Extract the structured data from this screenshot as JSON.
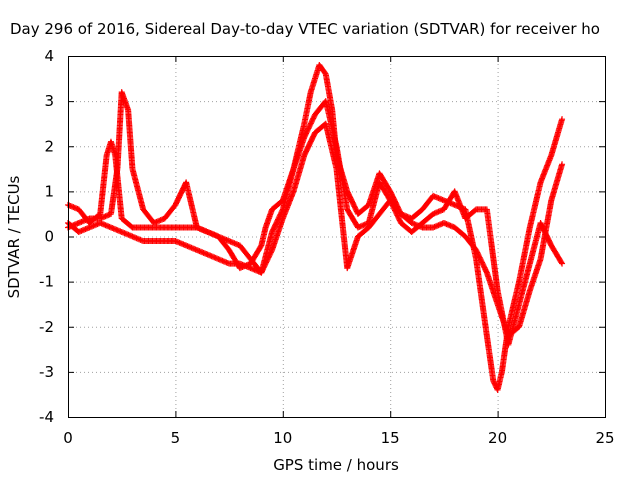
{
  "chart_data": {
    "type": "scatter",
    "title": "Day 296 of 2016, Sidereal Day-to-day VTEC variation (SDTVAR) for receiver ho",
    "xlabel": "GPS time / hours",
    "ylabel": "SDTVAR / TECUs",
    "xlim": [
      0,
      25
    ],
    "ylim": [
      -4,
      4
    ],
    "xticks": [
      "0",
      "5",
      "10",
      "15",
      "20",
      "25"
    ],
    "yticks": [
      "4",
      "3",
      "2",
      "1",
      "0",
      "-1",
      "-2",
      "-3",
      "-4"
    ],
    "grid": true,
    "marker": "+",
    "color": "#ff0000",
    "series": [
      {
        "x": [
          0.0,
          0.5,
          1.0,
          1.5,
          1.8,
          2.0,
          2.2,
          2.5,
          3.0,
          3.5,
          4.0,
          4.5,
          5.0,
          5.5,
          6.0,
          6.5,
          7.0,
          7.5,
          8.0,
          8.5,
          9.0,
          9.2,
          9.5,
          10.0,
          10.5,
          11.0,
          11.3,
          11.5,
          11.7,
          12.0,
          12.3,
          12.5,
          13.0,
          13.5,
          14.0,
          14.5,
          15.0,
          15.5,
          16.0,
          16.5,
          17.0,
          17.5,
          18.0,
          18.5,
          19.0,
          19.5,
          19.8,
          20.0,
          20.2,
          20.5,
          21.0,
          21.5,
          22.0,
          22.5,
          23.0
        ],
        "y": [
          0.7,
          0.6,
          0.3,
          0.5,
          1.8,
          2.1,
          1.8,
          0.4,
          0.2,
          0.2,
          0.2,
          0.2,
          0.2,
          0.2,
          0.2,
          0.1,
          0.0,
          -0.3,
          -0.7,
          -0.6,
          -0.2,
          0.2,
          0.6,
          0.8,
          1.5,
          2.5,
          3.2,
          3.5,
          3.8,
          3.6,
          2.8,
          1.8,
          1.0,
          0.5,
          0.7,
          1.4,
          1.0,
          0.5,
          0.4,
          0.6,
          0.9,
          0.8,
          0.7,
          0.6,
          -0.5,
          -2.2,
          -3.2,
          -3.4,
          -3.0,
          -2.0,
          -1.0,
          0.2,
          1.2,
          1.8,
          2.6
        ]
      },
      {
        "x": [
          0.0,
          0.5,
          1.0,
          1.5,
          2.0,
          2.3,
          2.5,
          2.8,
          3.0,
          3.5,
          4.0,
          4.5,
          5.0,
          5.5,
          6.0,
          6.5,
          7.0,
          7.5,
          8.0,
          8.5,
          9.0,
          9.5,
          10.0,
          10.5,
          11.0,
          11.5,
          12.0,
          12.5,
          13.0,
          13.5,
          14.0,
          14.5,
          15.0,
          15.5,
          16.0,
          16.5,
          17.0,
          17.5,
          18.0,
          18.5,
          19.0,
          19.5,
          20.0,
          20.5,
          21.0,
          21.5,
          22.0,
          22.5,
          23.0
        ],
        "y": [
          0.2,
          0.3,
          0.4,
          0.4,
          0.5,
          1.5,
          3.2,
          2.8,
          1.5,
          0.6,
          0.3,
          0.4,
          0.7,
          1.2,
          0.2,
          0.1,
          0.0,
          -0.1,
          -0.2,
          -0.5,
          -0.8,
          0.1,
          0.6,
          1.5,
          2.2,
          2.7,
          3.0,
          2.0,
          0.6,
          0.2,
          0.3,
          1.2,
          0.8,
          0.3,
          0.1,
          0.3,
          0.5,
          0.6,
          1.0,
          0.4,
          0.6,
          0.6,
          -1.2,
          -2.4,
          -1.5,
          -0.6,
          0.3,
          -0.2,
          -0.6
        ]
      },
      {
        "x": [
          0.0,
          0.5,
          1.0,
          1.5,
          2.0,
          2.5,
          3.0,
          3.5,
          4.0,
          4.5,
          5.0,
          5.5,
          6.0,
          6.5,
          7.0,
          7.5,
          8.0,
          8.5,
          9.0,
          9.5,
          10.0,
          10.5,
          11.0,
          11.5,
          12.0,
          12.5,
          13.0,
          13.5,
          14.0,
          14.5,
          15.0,
          15.5,
          16.0,
          16.5,
          17.0,
          17.5,
          18.0,
          18.5,
          19.0,
          19.5,
          20.0,
          20.5,
          21.0,
          21.5,
          22.0,
          22.5,
          23.0
        ],
        "y": [
          0.3,
          0.1,
          0.2,
          0.3,
          0.2,
          0.1,
          0.0,
          -0.1,
          -0.1,
          -0.1,
          -0.1,
          -0.2,
          -0.3,
          -0.4,
          -0.5,
          -0.6,
          -0.6,
          -0.7,
          -0.8,
          -0.3,
          0.4,
          1.0,
          1.8,
          2.3,
          2.5,
          1.5,
          -0.7,
          0.0,
          0.2,
          0.5,
          0.8,
          0.5,
          0.3,
          0.2,
          0.2,
          0.3,
          0.2,
          0.0,
          -0.3,
          -0.8,
          -1.5,
          -2.2,
          -2.0,
          -1.2,
          -0.5,
          0.8,
          1.6
        ]
      }
    ]
  }
}
